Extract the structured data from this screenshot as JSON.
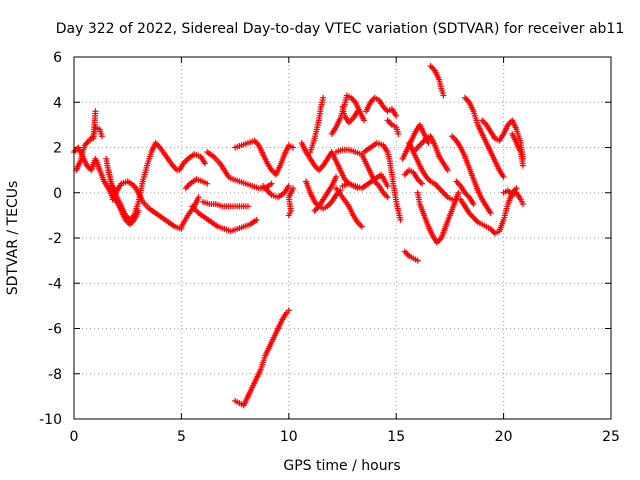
{
  "chart_data": {
    "type": "scatter",
    "title": "Day 322 of 2022, Sidereal Day-to-day VTEC variation (SDTVAR) for receiver ab11",
    "xlabel": "GPS time / hours",
    "ylabel": "SDTVAR / TECUs",
    "xlim": [
      0,
      25
    ],
    "ylim": [
      -10,
      6
    ],
    "xticks": [
      "0",
      "5",
      "10",
      "15",
      "20",
      "25"
    ],
    "yticks": [
      "-10",
      "-8",
      "-6",
      "-4",
      "-2",
      "0",
      "2",
      "4",
      "6"
    ],
    "grid": true,
    "marker": "plus",
    "color": "#ff0000",
    "segments": [
      [
        [
          0.0,
          1.8
        ],
        [
          0.2,
          2.0
        ],
        [
          0.4,
          1.6
        ],
        [
          0.6,
          1.2
        ],
        [
          0.8,
          1.0
        ],
        [
          1.0,
          1.5
        ],
        [
          1.2,
          1.0
        ],
        [
          1.4,
          0.5
        ],
        [
          1.6,
          0.2
        ],
        [
          1.8,
          -0.2
        ],
        [
          2.0,
          -0.4
        ]
      ],
      [
        [
          0.1,
          1.0
        ],
        [
          0.3,
          1.4
        ],
        [
          0.5,
          2.1
        ],
        [
          0.7,
          2.3
        ],
        [
          0.9,
          2.5
        ],
        [
          1.0,
          3.6
        ]
      ],
      [
        [
          0.9,
          2.4
        ],
        [
          1.0,
          2.9
        ],
        [
          1.2,
          2.8
        ],
        [
          1.3,
          2.5
        ]
      ],
      [
        [
          1.5,
          1.5
        ],
        [
          1.7,
          0.5
        ],
        [
          2.0,
          -0.2
        ],
        [
          2.2,
          -0.6
        ],
        [
          2.4,
          -1.0
        ],
        [
          2.6,
          -1.2
        ],
        [
          2.8,
          -1.0
        ],
        [
          3.0,
          -0.4
        ],
        [
          3.2,
          0.5
        ],
        [
          3.4,
          1.2
        ],
        [
          3.6,
          1.8
        ],
        [
          3.8,
          2.2
        ],
        [
          4.0,
          2.0
        ],
        [
          4.3,
          1.6
        ],
        [
          4.6,
          1.2
        ],
        [
          4.8,
          1.0
        ]
      ],
      [
        [
          1.6,
          1.0
        ],
        [
          1.8,
          0.2
        ],
        [
          2.0,
          -0.4
        ],
        [
          2.2,
          -0.8
        ],
        [
          2.4,
          -1.2
        ],
        [
          2.6,
          -1.4
        ],
        [
          2.8,
          -1.2
        ],
        [
          3.0,
          -0.8
        ]
      ],
      [
        [
          1.8,
          -0.3
        ],
        [
          2.0,
          0.1
        ],
        [
          2.2,
          0.4
        ],
        [
          2.5,
          0.5
        ],
        [
          2.8,
          0.3
        ],
        [
          3.0,
          0.0
        ],
        [
          3.2,
          -0.4
        ],
        [
          3.5,
          -0.7
        ],
        [
          3.8,
          -0.9
        ],
        [
          4.1,
          -1.1
        ],
        [
          4.4,
          -1.3
        ],
        [
          4.7,
          -1.5
        ],
        [
          5.0,
          -1.6
        ]
      ],
      [
        [
          5.0,
          -1.5
        ],
        [
          5.3,
          -1.0
        ],
        [
          5.6,
          -0.6
        ],
        [
          5.8,
          -0.2
        ]
      ],
      [
        [
          4.9,
          1.0
        ],
        [
          5.1,
          1.3
        ],
        [
          5.3,
          1.5
        ],
        [
          5.6,
          1.7
        ],
        [
          5.9,
          1.6
        ],
        [
          6.1,
          1.3
        ]
      ],
      [
        [
          5.2,
          0.2
        ],
        [
          5.4,
          0.4
        ],
        [
          5.7,
          0.6
        ],
        [
          6.0,
          0.5
        ],
        [
          6.2,
          0.4
        ]
      ],
      [
        [
          5.5,
          -0.6
        ],
        [
          5.8,
          -0.9
        ],
        [
          6.1,
          -1.1
        ],
        [
          6.4,
          -1.3
        ],
        [
          6.7,
          -1.5
        ],
        [
          7.0,
          -1.6
        ],
        [
          7.3,
          -1.7
        ],
        [
          7.6,
          -1.6
        ],
        [
          7.9,
          -1.5
        ],
        [
          8.2,
          -1.4
        ],
        [
          8.5,
          -1.2
        ]
      ],
      [
        [
          6.0,
          -0.4
        ],
        [
          6.3,
          -0.5
        ],
        [
          6.6,
          -0.5
        ],
        [
          6.9,
          -0.6
        ],
        [
          7.2,
          -0.6
        ],
        [
          7.5,
          -0.6
        ],
        [
          7.8,
          -0.6
        ],
        [
          8.1,
          -0.6
        ]
      ],
      [
        [
          6.2,
          1.8
        ],
        [
          6.5,
          1.6
        ],
        [
          6.8,
          1.3
        ],
        [
          7.0,
          1.0
        ],
        [
          7.2,
          0.7
        ],
        [
          7.4,
          0.6
        ],
        [
          7.7,
          0.5
        ],
        [
          8.0,
          0.4
        ],
        [
          8.3,
          0.3
        ],
        [
          8.6,
          0.2
        ],
        [
          8.9,
          0.2
        ],
        [
          9.2,
          0.4
        ]
      ],
      [
        [
          7.5,
          2.0
        ],
        [
          7.8,
          2.1
        ],
        [
          8.1,
          2.2
        ],
        [
          8.4,
          2.3
        ],
        [
          8.6,
          2.1
        ],
        [
          8.8,
          1.7
        ],
        [
          9.0,
          1.3
        ],
        [
          9.2,
          1.0
        ],
        [
          9.4,
          0.8
        ],
        [
          9.6,
          1.2
        ],
        [
          9.8,
          1.7
        ],
        [
          10.0,
          2.1
        ],
        [
          10.2,
          2.0
        ]
      ],
      [
        [
          8.8,
          0.3
        ],
        [
          9.0,
          0.1
        ],
        [
          9.2,
          -0.1
        ],
        [
          9.5,
          -0.2
        ],
        [
          9.8,
          0.0
        ],
        [
          10.0,
          0.3
        ]
      ],
      [
        [
          10.0,
          -1.0
        ],
        [
          10.1,
          -0.8
        ],
        [
          10.0,
          -0.2
        ],
        [
          10.2,
          0.2
        ]
      ],
      [
        [
          7.5,
          -9.2
        ],
        [
          7.7,
          -9.3
        ],
        [
          7.9,
          -9.4
        ],
        [
          8.1,
          -9.0
        ],
        [
          8.3,
          -8.6
        ],
        [
          8.5,
          -8.2
        ],
        [
          8.7,
          -7.8
        ],
        [
          8.9,
          -7.2
        ],
        [
          9.1,
          -6.8
        ],
        [
          9.3,
          -6.4
        ],
        [
          9.5,
          -6.0
        ],
        [
          9.7,
          -5.6
        ],
        [
          9.9,
          -5.3
        ],
        [
          10.0,
          -5.2
        ]
      ],
      [
        [
          10.6,
          2.2
        ],
        [
          10.8,
          1.8
        ],
        [
          11.0,
          1.5
        ],
        [
          11.2,
          1.2
        ],
        [
          11.4,
          1.0
        ],
        [
          11.6,
          1.2
        ],
        [
          11.8,
          1.5
        ],
        [
          12.0,
          1.8
        ],
        [
          12.2,
          1.4
        ],
        [
          12.4,
          1.0
        ],
        [
          12.6,
          0.6
        ],
        [
          12.8,
          0.4
        ],
        [
          13.0,
          0.3
        ],
        [
          13.2,
          0.2
        ]
      ],
      [
        [
          11.0,
          1.8
        ],
        [
          11.2,
          2.4
        ],
        [
          11.4,
          3.2
        ],
        [
          11.5,
          3.8
        ],
        [
          11.6,
          4.2
        ]
      ],
      [
        [
          10.8,
          0.5
        ],
        [
          11.0,
          0.0
        ],
        [
          11.2,
          -0.4
        ],
        [
          11.4,
          -0.6
        ],
        [
          11.6,
          -0.7
        ],
        [
          11.8,
          -0.6
        ],
        [
          12.0,
          -0.4
        ],
        [
          12.2,
          -0.1
        ],
        [
          12.4,
          0.1
        ]
      ],
      [
        [
          11.2,
          -0.8
        ],
        [
          11.4,
          -0.6
        ],
        [
          11.6,
          -0.3
        ],
        [
          11.8,
          0.0
        ],
        [
          12.0,
          0.3
        ],
        [
          12.2,
          0.7
        ]
      ],
      [
        [
          12.0,
          2.6
        ],
        [
          12.2,
          2.9
        ],
        [
          12.4,
          3.3
        ],
        [
          12.6,
          3.9
        ],
        [
          12.7,
          4.3
        ],
        [
          12.9,
          4.2
        ],
        [
          13.1,
          4.0
        ],
        [
          13.3,
          3.6
        ],
        [
          13.5,
          3.2
        ]
      ],
      [
        [
          12.5,
          3.8
        ],
        [
          12.6,
          3.4
        ],
        [
          12.8,
          3.1
        ],
        [
          13.0,
          3.3
        ],
        [
          13.2,
          3.6
        ]
      ],
      [
        [
          12.2,
          1.8
        ],
        [
          12.5,
          1.9
        ],
        [
          12.8,
          1.9
        ],
        [
          13.1,
          1.8
        ],
        [
          13.4,
          1.7
        ],
        [
          13.6,
          1.3
        ],
        [
          13.8,
          0.9
        ],
        [
          14.0,
          0.5
        ],
        [
          14.2,
          0.3
        ],
        [
          14.4,
          0.0
        ],
        [
          14.6,
          -0.2
        ]
      ],
      [
        [
          12.2,
          0.2
        ],
        [
          12.5,
          -0.2
        ],
        [
          12.8,
          -0.6
        ],
        [
          13.0,
          -1.0
        ],
        [
          13.2,
          -1.3
        ],
        [
          13.4,
          -1.5
        ]
      ],
      [
        [
          12.5,
          0.3
        ],
        [
          12.8,
          0.4
        ],
        [
          13.1,
          0.3
        ],
        [
          13.4,
          0.2
        ],
        [
          13.7,
          0.4
        ],
        [
          14.0,
          0.6
        ],
        [
          14.3,
          0.8
        ],
        [
          14.6,
          0.3
        ]
      ],
      [
        [
          13.5,
          1.8
        ],
        [
          13.8,
          2.0
        ],
        [
          14.1,
          2.2
        ],
        [
          14.4,
          2.1
        ],
        [
          14.6,
          1.8
        ],
        [
          14.7,
          1.4
        ],
        [
          14.8,
          0.8
        ],
        [
          14.9,
          0.2
        ],
        [
          15.0,
          -0.4
        ],
        [
          15.1,
          -0.8
        ],
        [
          15.2,
          -1.2
        ]
      ],
      [
        [
          13.6,
          3.6
        ],
        [
          13.8,
          4.0
        ],
        [
          14.0,
          4.2
        ],
        [
          14.2,
          4.1
        ],
        [
          14.4,
          3.8
        ],
        [
          14.6,
          3.6
        ],
        [
          14.8,
          3.7
        ],
        [
          15.0,
          3.4
        ]
      ],
      [
        [
          14.6,
          3.2
        ],
        [
          14.8,
          3.0
        ],
        [
          15.0,
          2.9
        ],
        [
          15.1,
          2.6
        ]
      ],
      [
        [
          15.3,
          1.5
        ],
        [
          15.5,
          1.9
        ],
        [
          15.7,
          2.3
        ],
        [
          15.9,
          2.7
        ],
        [
          16.1,
          3.0
        ],
        [
          16.3,
          2.6
        ],
        [
          16.5,
          2.2
        ]
      ],
      [
        [
          15.6,
          2.2
        ],
        [
          15.8,
          1.8
        ],
        [
          16.0,
          1.4
        ],
        [
          16.2,
          1.0
        ],
        [
          16.4,
          0.7
        ],
        [
          16.6,
          0.5
        ],
        [
          16.8,
          0.4
        ],
        [
          17.0,
          0.2
        ],
        [
          17.2,
          0.0
        ],
        [
          17.4,
          -0.2
        ],
        [
          17.6,
          -0.3
        ]
      ],
      [
        [
          15.8,
          1.8
        ],
        [
          16.0,
          2.0
        ],
        [
          16.2,
          2.2
        ],
        [
          16.4,
          2.4
        ],
        [
          16.6,
          2.5
        ],
        [
          16.8,
          2.1
        ],
        [
          17.0,
          1.6
        ],
        [
          17.2,
          1.3
        ],
        [
          17.4,
          1.0
        ]
      ],
      [
        [
          15.4,
          0.8
        ],
        [
          15.6,
          1.0
        ],
        [
          15.8,
          0.9
        ],
        [
          16.0,
          0.6
        ],
        [
          16.2,
          0.4
        ]
      ],
      [
        [
          16.0,
          0.0
        ],
        [
          16.1,
          -0.5
        ],
        [
          16.3,
          -1.0
        ],
        [
          16.5,
          -1.5
        ],
        [
          16.7,
          -1.9
        ],
        [
          16.9,
          -2.2
        ],
        [
          17.1,
          -2.0
        ],
        [
          17.3,
          -1.5
        ],
        [
          17.5,
          -1.0
        ],
        [
          17.7,
          -0.5
        ],
        [
          17.9,
          0.0
        ]
      ],
      [
        [
          16.6,
          5.6
        ],
        [
          16.8,
          5.4
        ],
        [
          17.0,
          5.0
        ],
        [
          17.1,
          4.6
        ],
        [
          17.2,
          4.3
        ]
      ],
      [
        [
          15.4,
          -2.6
        ],
        [
          15.6,
          -2.8
        ],
        [
          15.8,
          -2.9
        ],
        [
          16.0,
          -3.0
        ]
      ],
      [
        [
          17.6,
          2.5
        ],
        [
          17.8,
          2.3
        ],
        [
          18.0,
          2.0
        ],
        [
          18.2,
          1.6
        ],
        [
          18.4,
          1.1
        ],
        [
          18.6,
          0.6
        ],
        [
          18.8,
          0.1
        ],
        [
          19.0,
          -0.3
        ],
        [
          19.2,
          -0.6
        ],
        [
          19.4,
          -0.9
        ]
      ],
      [
        [
          18.2,
          4.2
        ],
        [
          18.4,
          4.0
        ],
        [
          18.6,
          3.6
        ],
        [
          18.8,
          3.0
        ],
        [
          19.0,
          2.6
        ],
        [
          19.2,
          2.2
        ],
        [
          19.4,
          1.8
        ],
        [
          19.6,
          1.4
        ],
        [
          19.8,
          1.0
        ],
        [
          20.0,
          0.7
        ]
      ],
      [
        [
          18.0,
          -0.3
        ],
        [
          18.2,
          -0.6
        ],
        [
          18.4,
          -0.9
        ],
        [
          18.6,
          -1.1
        ],
        [
          18.8,
          -1.3
        ],
        [
          19.0,
          -1.4
        ],
        [
          19.2,
          -1.5
        ],
        [
          19.4,
          -1.6
        ],
        [
          19.6,
          -1.8
        ],
        [
          19.8,
          -1.7
        ],
        [
          20.0,
          -1.2
        ],
        [
          20.2,
          -0.5
        ],
        [
          20.4,
          0.0
        ],
        [
          20.6,
          0.2
        ]
      ],
      [
        [
          17.8,
          0.5
        ],
        [
          18.0,
          0.3
        ],
        [
          18.2,
          0.0
        ],
        [
          18.4,
          -0.2
        ],
        [
          18.6,
          -0.5
        ]
      ],
      [
        [
          19.0,
          3.2
        ],
        [
          19.2,
          3.0
        ],
        [
          19.4,
          2.7
        ],
        [
          19.6,
          2.4
        ],
        [
          19.8,
          2.3
        ],
        [
          20.0,
          2.6
        ],
        [
          20.2,
          3.0
        ],
        [
          20.4,
          3.2
        ],
        [
          20.6,
          2.8
        ],
        [
          20.8,
          2.2
        ],
        [
          20.9,
          1.5
        ]
      ],
      [
        [
          20.0,
          0.0
        ],
        [
          20.2,
          0.1
        ],
        [
          20.4,
          -0.1
        ],
        [
          20.6,
          0.0
        ],
        [
          20.8,
          -0.3
        ],
        [
          20.9,
          -0.5
        ]
      ],
      [
        [
          20.4,
          2.6
        ],
        [
          20.6,
          2.2
        ],
        [
          20.8,
          1.8
        ],
        [
          20.9,
          1.2
        ]
      ]
    ]
  }
}
